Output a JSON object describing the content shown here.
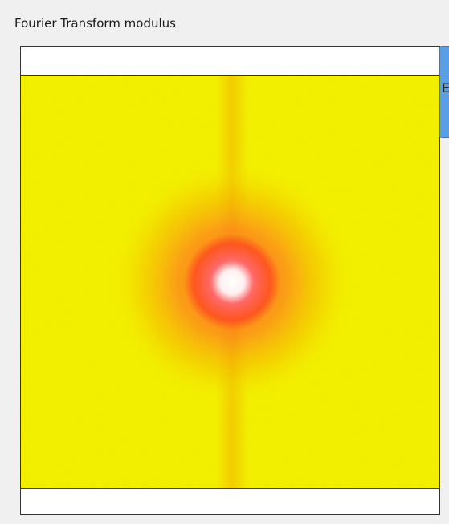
{
  "panel": {
    "title": "Fourier Transform modulus"
  },
  "button": {
    "label": "E"
  }
}
